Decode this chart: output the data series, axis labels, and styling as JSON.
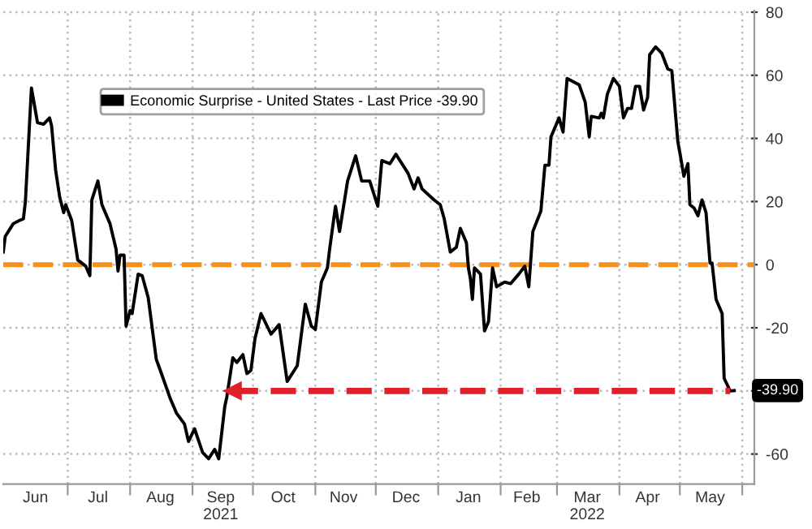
{
  "chart_data": {
    "type": "line",
    "x": [
      "2021-05-30",
      "2021-05-31",
      "2021-06-04",
      "2021-06-07",
      "2021-06-09",
      "2021-06-10",
      "2021-06-13",
      "2021-06-16",
      "2021-06-19",
      "2021-06-22",
      "2021-06-23",
      "2021-06-25",
      "2021-06-27",
      "2021-06-29",
      "2021-06-30",
      "2021-07-03",
      "2021-07-06",
      "2021-07-10",
      "2021-07-12",
      "2021-07-13",
      "2021-07-16",
      "2021-07-18",
      "2021-07-22",
      "2021-07-25",
      "2021-07-26",
      "2021-07-27",
      "2021-07-29",
      "2021-07-30",
      "2021-08-01",
      "2021-08-02",
      "2021-08-05",
      "2021-08-07",
      "2021-08-10",
      "2021-08-14",
      "2021-08-16",
      "2021-08-21",
      "2021-08-24",
      "2021-08-28",
      "2021-08-30",
      "2021-09-02",
      "2021-09-06",
      "2021-09-09",
      "2021-09-12",
      "2021-09-14",
      "2021-09-17",
      "2021-09-18",
      "2021-09-21",
      "2021-09-23",
      "2021-09-26",
      "2021-09-28",
      "2021-09-30",
      "2021-10-02",
      "2021-10-05",
      "2021-10-10",
      "2021-10-14",
      "2021-10-18",
      "2021-10-23",
      "2021-10-27",
      "2021-10-30",
      "2021-11-01",
      "2021-11-04",
      "2021-11-07",
      "2021-11-08",
      "2021-11-11",
      "2021-11-13",
      "2021-11-17",
      "2021-11-21",
      "2021-11-24",
      "2021-11-28",
      "2021-12-02",
      "2021-12-04",
      "2021-12-08",
      "2021-12-11",
      "2021-12-12",
      "2021-12-17",
      "2021-12-20",
      "2021-12-22",
      "2021-12-24",
      "2021-12-30",
      "2022-01-02",
      "2022-01-04",
      "2022-01-07",
      "2022-01-10",
      "2022-01-12",
      "2022-01-15",
      "2022-01-16",
      "2022-01-17",
      "2022-01-18",
      "2022-01-19",
      "2022-01-22",
      "2022-01-24",
      "2022-01-26",
      "2022-01-28",
      "2022-01-30",
      "2022-02-03",
      "2022-02-06",
      "2022-02-10",
      "2022-02-13",
      "2022-02-15",
      "2022-02-17",
      "2022-02-21",
      "2022-02-23",
      "2022-02-25",
      "2022-02-26",
      "2022-03-02",
      "2022-03-04",
      "2022-03-06",
      "2022-03-12",
      "2022-03-15",
      "2022-03-17",
      "2022-03-18",
      "2022-03-22",
      "2022-03-23",
      "2022-03-24",
      "2022-03-26",
      "2022-03-29",
      "2022-04-01",
      "2022-04-03",
      "2022-04-05",
      "2022-04-07",
      "2022-04-09",
      "2022-04-11",
      "2022-04-13",
      "2022-04-15",
      "2022-04-16",
      "2022-04-19",
      "2022-04-22",
      "2022-04-25",
      "2022-04-27",
      "2022-04-30",
      "2022-05-01",
      "2022-05-03",
      "2022-05-05",
      "2022-05-06",
      "2022-05-08",
      "2022-05-10",
      "2022-05-12",
      "2022-05-14",
      "2022-05-16",
      "2022-05-17",
      "2022-05-19",
      "2022-05-22",
      "2022-05-23",
      "2022-05-26",
      "2022-05-28"
    ],
    "series": [
      {
        "name": "Economic Surprise - United States - Last Price -39.90",
        "color": "#000000",
        "values": [
          4,
          9,
          13,
          14,
          14.5,
          20,
          56,
          45,
          44.5,
          46.5,
          44,
          30,
          21.5,
          16.5,
          19,
          14,
          1.5,
          -0.5,
          -3.5,
          20.5,
          26.5,
          19,
          13,
          5,
          -2,
          3,
          3,
          -19.5,
          -14.5,
          -15.5,
          -3,
          -3.5,
          -10.5,
          -30,
          -33.5,
          -42.5,
          -47,
          -50.5,
          -56,
          -52,
          -59.5,
          -61.5,
          -58.5,
          -61.5,
          -45,
          -42,
          -29.5,
          -31,
          -28.5,
          -34.5,
          -33.5,
          -23.5,
          -15.5,
          -22,
          -19,
          -37,
          -32,
          -12.5,
          -19.5,
          -20.5,
          -5.5,
          -1,
          4.5,
          18.5,
          10.5,
          26.5,
          34.5,
          26.5,
          26.5,
          18.5,
          33,
          32,
          35,
          34,
          29,
          24,
          27.5,
          24,
          20.5,
          19,
          14.5,
          4,
          5.5,
          11.5,
          7,
          -1,
          -4.5,
          -11,
          -1,
          -3,
          -21,
          -18,
          -1,
          -7,
          -5.5,
          -6,
          -3,
          -0.5,
          -7,
          10.5,
          17,
          31.5,
          31.5,
          40.5,
          46.5,
          42,
          59,
          57,
          51.5,
          40.5,
          47,
          46.5,
          48,
          46.5,
          54,
          59,
          56.5,
          46.5,
          49.5,
          49.5,
          56.5,
          56.5,
          49,
          53,
          66.5,
          69,
          67,
          62,
          61.5,
          39,
          35.5,
          28,
          32,
          19,
          18,
          15.5,
          20.5,
          16.5,
          0.5,
          0.5,
          -11,
          -15.5,
          -36,
          -40,
          -39.9
        ]
      },
      {
        "type": "line",
        "color": "#e0202a",
        "line_style": "dashed",
        "x": [
          "2021-09-21",
          "2022-05-26"
        ],
        "values": [
          -40,
          -40
        ]
      }
    ],
    "ref_lines": [
      {
        "axis": "y",
        "value": 0,
        "color": "#f5901e",
        "line_style": "dashed"
      }
    ],
    "annotations": [
      {
        "text": "-39.90",
        "x": "2022-05-28",
        "y": -39.9
      }
    ],
    "xlim": [
      "2021-05-30",
      "2022-06-07"
    ],
    "xticks": [
      {
        "value": "2021-06-15",
        "label": "Jun"
      },
      {
        "value": "2021-07-01",
        "label": null
      },
      {
        "value": "2021-07-16",
        "label": "Jul"
      },
      {
        "value": "2021-08-01",
        "label": null
      },
      {
        "value": "2021-08-16",
        "label": "Aug"
      },
      {
        "value": "2021-09-01",
        "label": null
      },
      {
        "value": "2021-09-15",
        "label": "Sep\n2021"
      },
      {
        "value": "2021-10-01",
        "label": null
      },
      {
        "value": "2021-10-16",
        "label": "Oct"
      },
      {
        "value": "2021-11-01",
        "label": null
      },
      {
        "value": "2021-11-15",
        "label": "Nov"
      },
      {
        "value": "2021-12-01",
        "label": null
      },
      {
        "value": "2021-12-16",
        "label": "Dec"
      },
      {
        "value": "2022-01-01",
        "label": null
      },
      {
        "value": "2022-01-16",
        "label": "Jan"
      },
      {
        "value": "2022-02-01",
        "label": null
      },
      {
        "value": "2022-02-14",
        "label": "Feb"
      },
      {
        "value": "2022-03-01",
        "label": null
      },
      {
        "value": "2022-03-16",
        "label": "Mar\n2022"
      },
      {
        "value": "2022-04-01",
        "label": null
      },
      {
        "value": "2022-04-15",
        "label": "Apr"
      },
      {
        "value": "2022-05-01",
        "label": null
      },
      {
        "value": "2022-05-16",
        "label": "May"
      },
      {
        "value": "2022-06-01",
        "label": null
      }
    ],
    "ylim": [
      -69.5,
      80.5
    ],
    "yticks": [
      -60,
      {
        "value": -40,
        "label": null
      },
      -20,
      0,
      20,
      40,
      60,
      80
    ],
    "grid": true,
    "legend": "top left",
    "line_style": "solid"
  }
}
